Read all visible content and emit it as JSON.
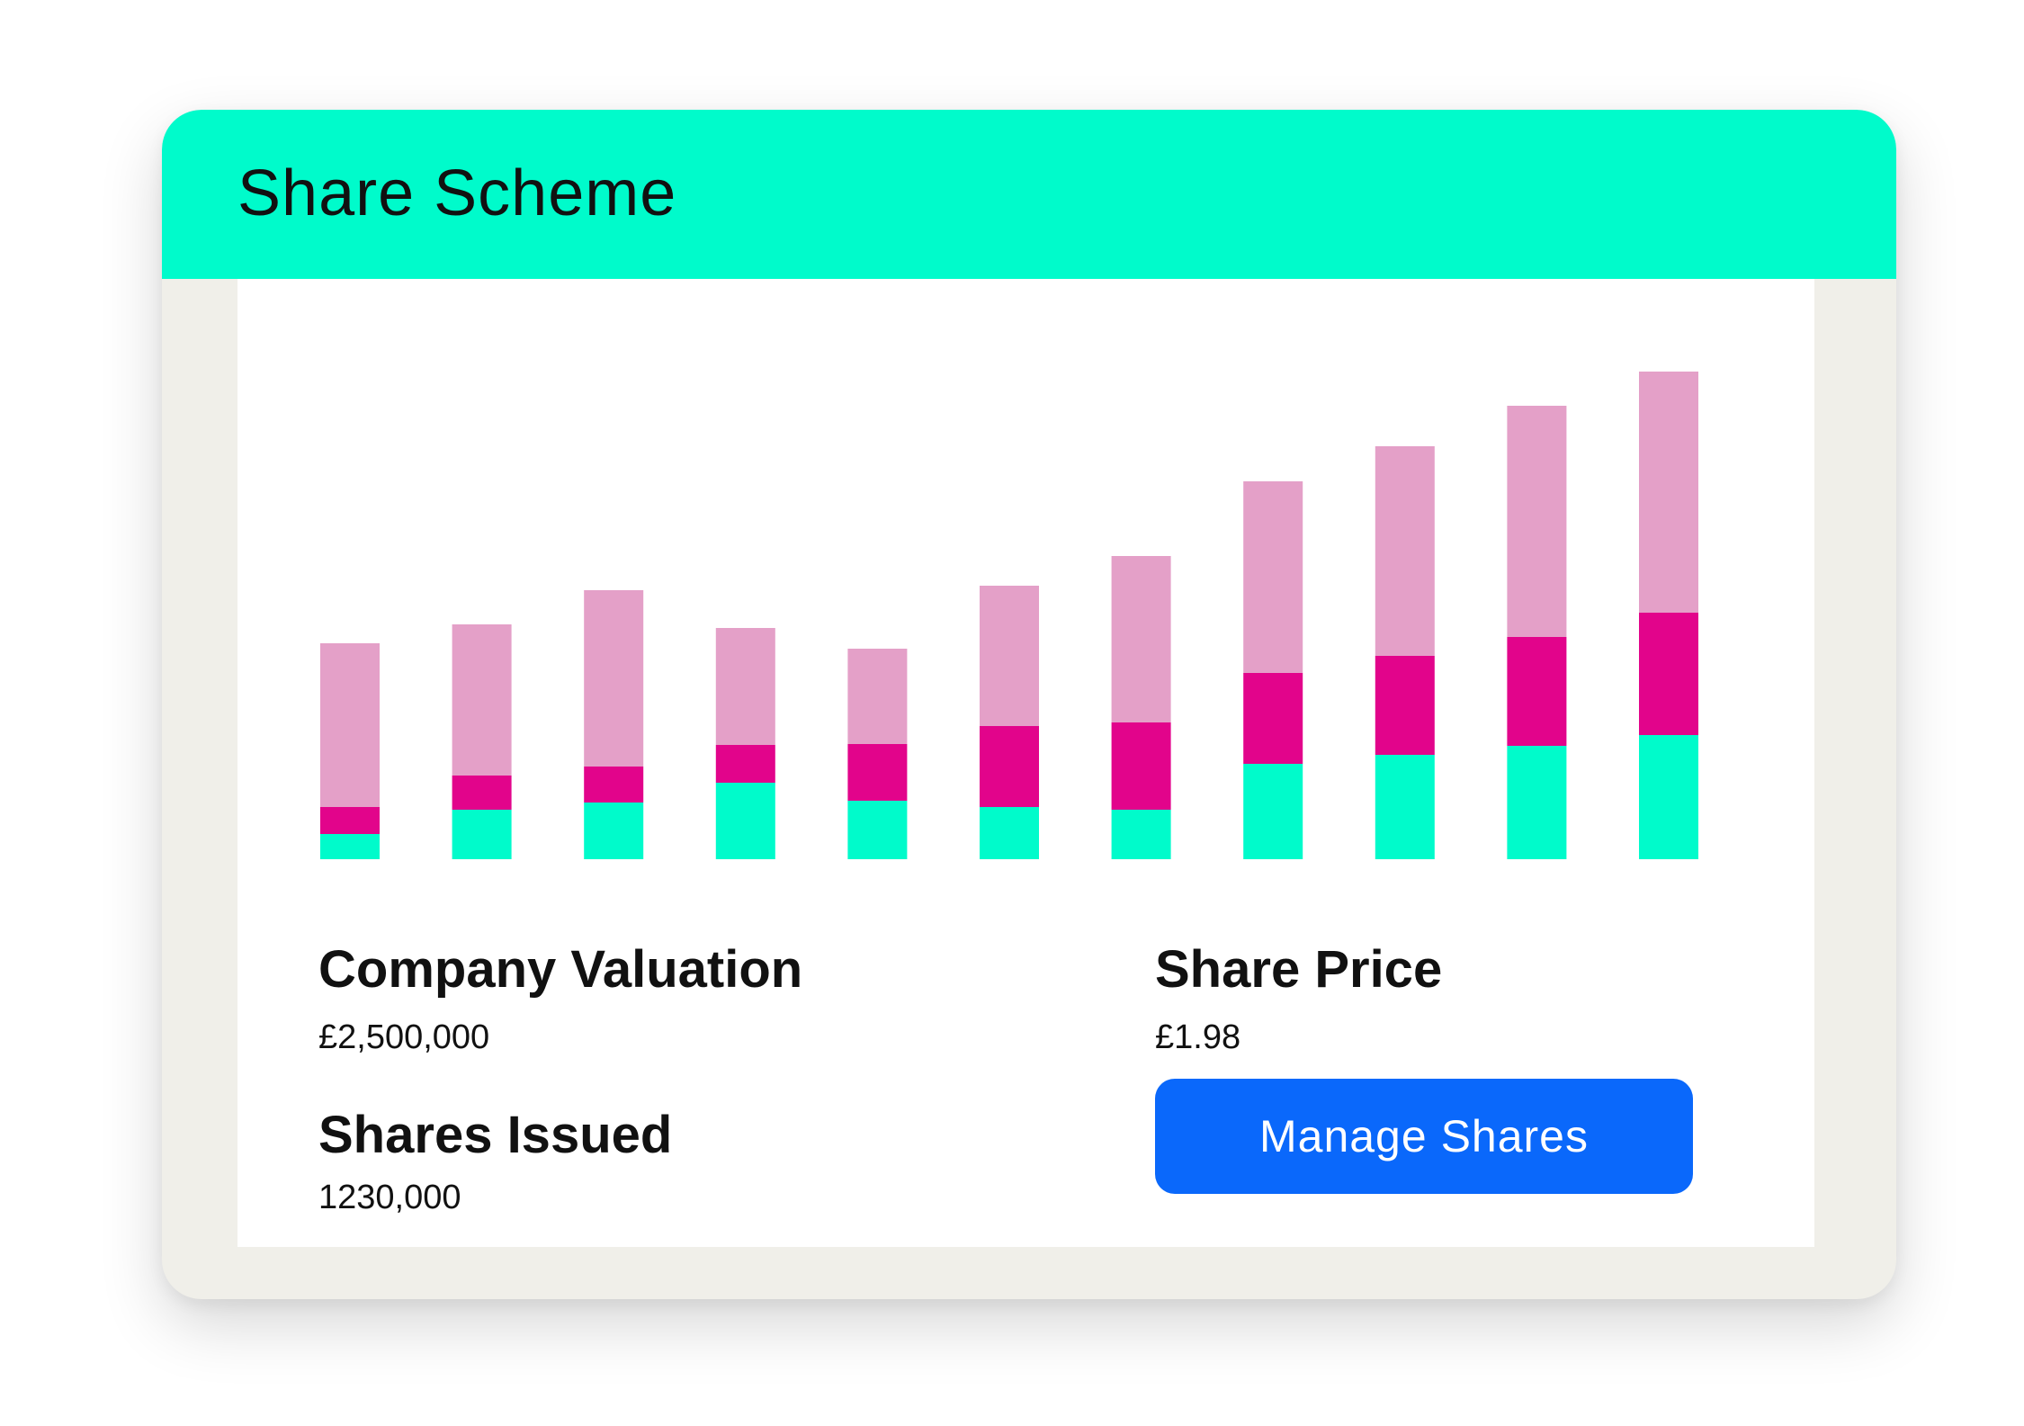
{
  "window": {
    "title": "Share Scheme"
  },
  "colors": {
    "header": "#00fbcb",
    "card_frame": "#f0efe9",
    "button": "#0a68fb",
    "series_bottom": "#00fbcb",
    "series_middle": "#e2048b",
    "series_top": "#e4a0c8"
  },
  "chart_data": {
    "type": "bar",
    "stacked": true,
    "categories": [
      "",
      "",
      "",
      "",
      "",
      "",
      "",
      "",
      "",
      "",
      ""
    ],
    "series": [
      {
        "color": "#00fbcb",
        "values": [
          28,
          55,
          63,
          85,
          65,
          58,
          55,
          106,
          116,
          126,
          138
        ]
      },
      {
        "color": "#e2048b",
        "values": [
          30,
          38,
          40,
          42,
          63,
          90,
          97,
          101,
          110,
          121,
          136
        ]
      },
      {
        "color": "#e4a0c8",
        "values": [
          182,
          168,
          196,
          130,
          106,
          156,
          185,
          213,
          233,
          257,
          268
        ]
      }
    ],
    "ylim": [
      0,
      550
    ],
    "grid": false,
    "axes": false,
    "legend": false
  },
  "stats": {
    "valuation": {
      "label": "Company Valuation",
      "value": "£2,500,000"
    },
    "shares_issued": {
      "label": "Shares Issued",
      "value": "1230,000"
    },
    "share_price": {
      "label": "Share Price",
      "value": "£1.98"
    }
  },
  "actions": {
    "manage_label": "Manage Shares"
  }
}
